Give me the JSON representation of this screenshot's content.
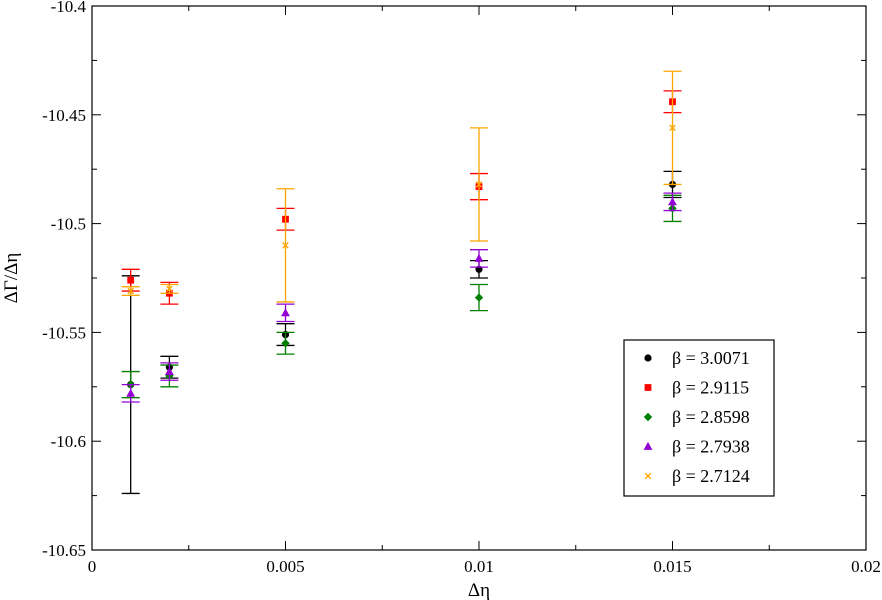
{
  "chart_data": {
    "type": "scatter",
    "xlabel": "Δη",
    "ylabel": "ΔΓ/Δη",
    "xlim": [
      0,
      0.02
    ],
    "ylim": [
      -10.65,
      -10.4
    ],
    "xticks": [
      0,
      0.005,
      0.01,
      0.015,
      0.02
    ],
    "xtick_labels": [
      "0",
      "0.005",
      "0.01",
      "0.015",
      "0.02"
    ],
    "yticks": [
      -10.65,
      -10.6,
      -10.55,
      -10.5,
      -10.45,
      -10.4
    ],
    "ytick_labels": [
      "-10.65",
      "-10.6",
      "-10.55",
      "-10.5",
      "-10.45",
      "-10.4"
    ],
    "grid": false,
    "legend_position": "bottom-right",
    "error_bars": true,
    "series": [
      {
        "name": "β = 3.0071",
        "color": "#000000",
        "marker": "circle",
        "x": [
          0.001,
          0.002,
          0.005,
          0.01,
          0.015
        ],
        "y": [
          -10.574,
          -10.566,
          -10.551,
          -10.521,
          -10.482
        ],
        "err": [
          0.05,
          0.005,
          0.005,
          0.004,
          0.006
        ]
      },
      {
        "name": "β = 2.9115",
        "color": "#ff0000",
        "marker": "square",
        "x": [
          0.001,
          0.002,
          0.005,
          0.01,
          0.015
        ],
        "y": [
          -10.526,
          -10.532,
          -10.498,
          -10.483,
          -10.444
        ],
        "err": [
          0.005,
          0.005,
          0.005,
          0.006,
          0.005
        ]
      },
      {
        "name": "β = 2.8598",
        "color": "#008000",
        "marker": "diamond",
        "x": [
          0.001,
          0.002,
          0.005,
          0.01,
          0.015
        ],
        "y": [
          -10.574,
          -10.57,
          -10.555,
          -10.534,
          -10.493
        ],
        "err": [
          0.006,
          0.005,
          0.005,
          0.006,
          0.006
        ]
      },
      {
        "name": "β = 2.7938",
        "color": "#9400d3",
        "marker": "triangle",
        "x": [
          0.001,
          0.002,
          0.005,
          0.01,
          0.015
        ],
        "y": [
          -10.578,
          -10.568,
          -10.541,
          -10.516,
          -10.49
        ],
        "err": [
          0.004,
          0.004,
          0.004,
          0.004,
          0.004
        ]
      },
      {
        "name": "β = 2.7124",
        "color": "#ffa500",
        "marker": "x",
        "x": [
          0.001,
          0.002,
          0.005,
          0.01,
          0.015
        ],
        "y": [
          -10.531,
          -10.53,
          -10.51,
          -10.482,
          -10.456
        ],
        "err": [
          0.002,
          0.002,
          0.026,
          0.026,
          0.026
        ]
      }
    ]
  }
}
